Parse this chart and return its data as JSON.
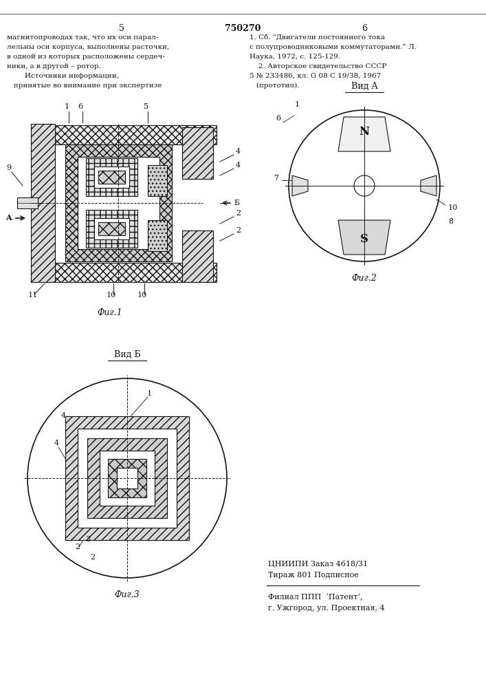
{
  "bg_color": "#ffffff",
  "page_number_left": "5",
  "page_number_center": "750270",
  "page_number_right": "6",
  "text_left_col": [
    "магнитопроводах так, что их оси парал-",
    "лельны оси корпуса, выполнены расточки,",
    "в одной из которых расположены сердеч-",
    "ники, а в другой – ротор.",
    "        Источники информации,",
    "   принятые во внимание при экспертизе"
  ],
  "text_right_col": [
    "1. Сб. \"Двигатели постоянного тока",
    "с полупроводниковыми коммутаторами.” Л.",
    "Наука, 1972, с. 125-129.",
    "    2. Авторское свидетельство СССР",
    "5 № 233486, кл. G 08 C 19/38, 1967",
    "   (прототип)."
  ],
  "fig1_caption": "Фиг.1",
  "fig2_caption": "Фиг.2",
  "fig3_caption": "Фиг.3",
  "vida_label": "Вид А",
  "vidb_label": "Вид Б",
  "bottom_text1": "ЦНИИПИ Заказ 4618/31",
  "bottom_text2": "Тираж 801 Подписное",
  "bottom_text3": "Филиал ППП  ‘Патент’,",
  "bottom_text4": "г. Ужгород, ул. Проектная, 4",
  "line_color": "#111111",
  "text_color": "#111111"
}
